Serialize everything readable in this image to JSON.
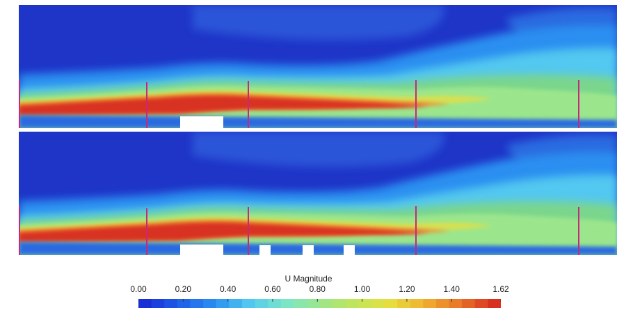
{
  "figure": {
    "colorbar": {
      "title": "U Magnitude",
      "min": 0.0,
      "max": 1.62,
      "ticks": [
        "0.00",
        "0.20",
        "0.40",
        "0.60",
        "0.80",
        "1.00",
        "1.20",
        "1.40",
        "1.62"
      ],
      "tick_values": [
        0.0,
        0.2,
        0.4,
        0.6,
        0.8,
        1.0,
        1.2,
        1.4,
        1.62
      ],
      "bands": 28,
      "colors": [
        "#1a2ed6",
        "#1f5fe8",
        "#2b8ff0",
        "#52c8f0",
        "#7ae6c8",
        "#9be68c",
        "#c0e65a",
        "#e6e040",
        "#f0b030",
        "#e87428",
        "#d83020"
      ]
    },
    "panels": [
      {
        "name": "top",
        "obstacles": 1
      },
      {
        "name": "bottom",
        "obstacles": 4
      }
    ],
    "marker_color": "#c8287a",
    "background_color": "#1e35c8"
  }
}
